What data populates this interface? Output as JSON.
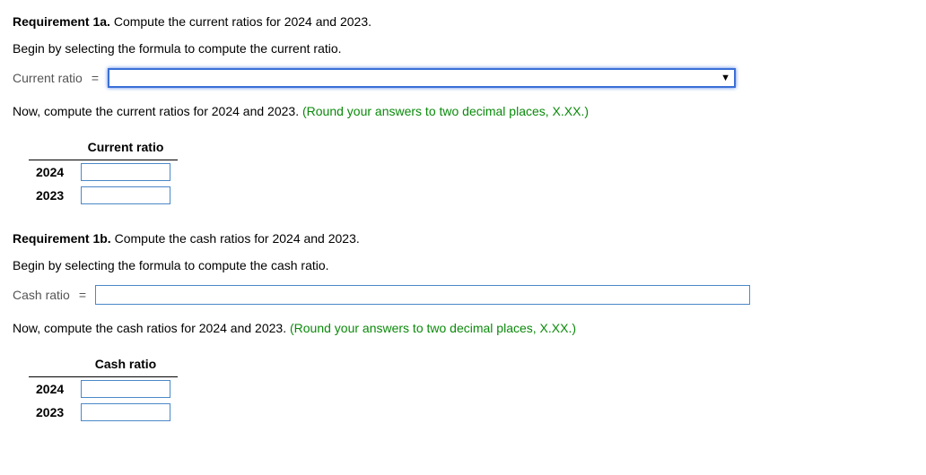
{
  "req1a": {
    "title_bold": "Requirement 1a.",
    "title_rest": " Compute the current ratios for 2024 and 2023.",
    "begin": "Begin by selecting the formula to compute the current ratio.",
    "label": "Current ratio",
    "equals": "=",
    "now_black": "Now, compute the current ratios for 2024 and 2023. ",
    "now_green": "(Round your answers to two decimal places, X.XX.)",
    "header": "Current ratio",
    "rows": [
      "2024",
      "2023"
    ]
  },
  "req1b": {
    "title_bold": "Requirement 1b.",
    "title_rest": " Compute the cash ratios for 2024 and 2023.",
    "begin": "Begin by selecting the formula to compute the cash ratio.",
    "label": "Cash ratio",
    "equals": "=",
    "now_black": "Now, compute the cash ratios for 2024 and 2023. ",
    "now_green": "(Round your answers to two decimal places, X.XX.)",
    "header": "Cash ratio",
    "rows": [
      "2024",
      "2023"
    ]
  },
  "style": {
    "dropdown_border": "#3b6fd6",
    "input_border": "#4b88c7",
    "green": "#0a8a0a"
  }
}
